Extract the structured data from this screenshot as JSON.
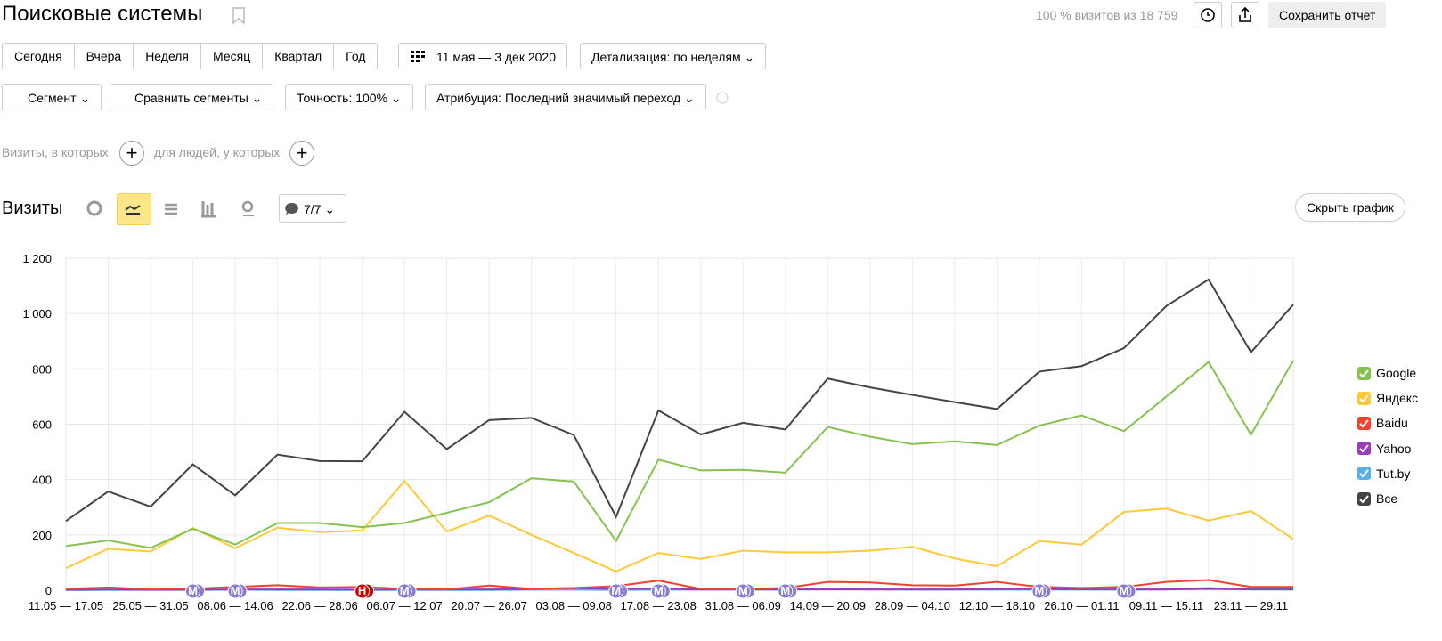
{
  "header": {
    "title": "Поисковые системы",
    "visits_info": "100 % визитов из 18 759",
    "save_button": "Сохранить отчет"
  },
  "period_buttons": [
    "Сегодня",
    "Вчера",
    "Неделя",
    "Месяц",
    "Квартал",
    "Год"
  ],
  "date_range": "11 мая — 3 дек 2020",
  "detail": "Детализация: по неделям",
  "filters": [
    "Сегмент",
    "Сравнить сегменты",
    "Точность: 100%",
    "Атрибуция: Последний значимый переход"
  ],
  "segment_row": {
    "visits_text": "Визиты, в которых",
    "people_text": "для людей, у которых"
  },
  "chart_header": {
    "title": "Визиты",
    "notes": "7/7",
    "hide_button": "Скрыть график"
  },
  "chart_data": {
    "type": "line",
    "categories": [
      "11.05 — 17.05",
      null,
      "25.05 — 31.05",
      null,
      "08.06 — 14.06",
      null,
      "22.06 — 28.06",
      null,
      "06.07 — 12.07",
      null,
      "20.07 — 26.07",
      null,
      "03.08 — 09.08",
      null,
      "17.08 — 23.08",
      null,
      "31.08 — 06.09",
      null,
      "14.09 — 20.09",
      null,
      "28.09 — 04.10",
      null,
      "12.10 — 18.10",
      null,
      "26.10 — 01.11",
      null,
      "09.11 — 15.11",
      null,
      "23.11 — 29.11",
      null
    ],
    "ylim": [
      0,
      1200
    ],
    "yticks": [
      0,
      200,
      400,
      600,
      800,
      {
        "value": 1000,
        "label": "1 000"
      },
      {
        "value": 1200,
        "label": "1 200"
      }
    ],
    "grid": true,
    "series": [
      {
        "name": "Google",
        "color": "#85c250",
        "values": [
          160,
          180,
          153,
          222,
          165,
          243,
          243,
          228,
          243,
          280,
          318,
          405,
          393,
          178,
          472,
          433,
          435,
          425,
          590,
          555,
          528,
          538,
          525,
          595,
          632,
          575,
          700,
          825,
          562,
          830
        ]
      },
      {
        "name": "Яндекс",
        "color": "#fdc937",
        "values": [
          80,
          150,
          140,
          225,
          152,
          226,
          210,
          216,
          395,
          212,
          270,
          200,
          135,
          68,
          135,
          113,
          143,
          137,
          137,
          143,
          157,
          115,
          87,
          178,
          165,
          283,
          295,
          252,
          286,
          185
        ]
      },
      {
        "name": "Baidu",
        "color": "#f2412c",
        "values": [
          5,
          10,
          3,
          5,
          12,
          18,
          10,
          12,
          5,
          3,
          17,
          5,
          8,
          15,
          35,
          5,
          5,
          8,
          30,
          28,
          18,
          17,
          30,
          12,
          8,
          12,
          30,
          37,
          12,
          12
        ]
      },
      {
        "name": "Yahoo",
        "color": "#9b3bb8",
        "values": [
          2,
          3,
          2,
          2,
          3,
          3,
          3,
          2,
          3,
          3,
          3,
          4,
          8,
          5,
          5,
          3,
          3,
          3,
          3,
          3,
          3,
          3,
          4,
          4,
          3,
          3,
          3,
          5,
          3,
          3
        ]
      },
      {
        "name": "Tut.by",
        "color": "#5aaeea",
        "values": [
          0,
          1,
          1,
          1,
          2,
          1,
          1,
          1,
          1,
          1,
          1,
          2,
          2,
          1,
          2,
          2,
          2,
          2,
          5,
          3,
          2,
          2,
          2,
          2,
          3,
          2,
          3,
          8,
          3,
          3
        ]
      },
      {
        "name": "Все",
        "color": "#444444",
        "values": [
          250,
          357,
          302,
          455,
          343,
          490,
          467,
          466,
          645,
          510,
          615,
          623,
          561,
          265,
          650,
          563,
          605,
          581,
          765,
          733,
          706,
          680,
          655,
          790,
          810,
          875,
          1027,
          1123,
          860,
          1032
        ]
      }
    ],
    "annotations": [
      {
        "x": 3,
        "label": "М"
      },
      {
        "x": 4,
        "label": "М"
      },
      {
        "x": 7,
        "label": "Н"
      },
      {
        "x": 8,
        "label": "М"
      },
      {
        "x": 13,
        "label": "М"
      },
      {
        "x": 14,
        "label": "М"
      },
      {
        "x": 16,
        "label": "М"
      },
      {
        "x": 17,
        "label": "М"
      },
      {
        "x": 23,
        "label": "М"
      },
      {
        "x": 25,
        "label": "М"
      }
    ]
  }
}
